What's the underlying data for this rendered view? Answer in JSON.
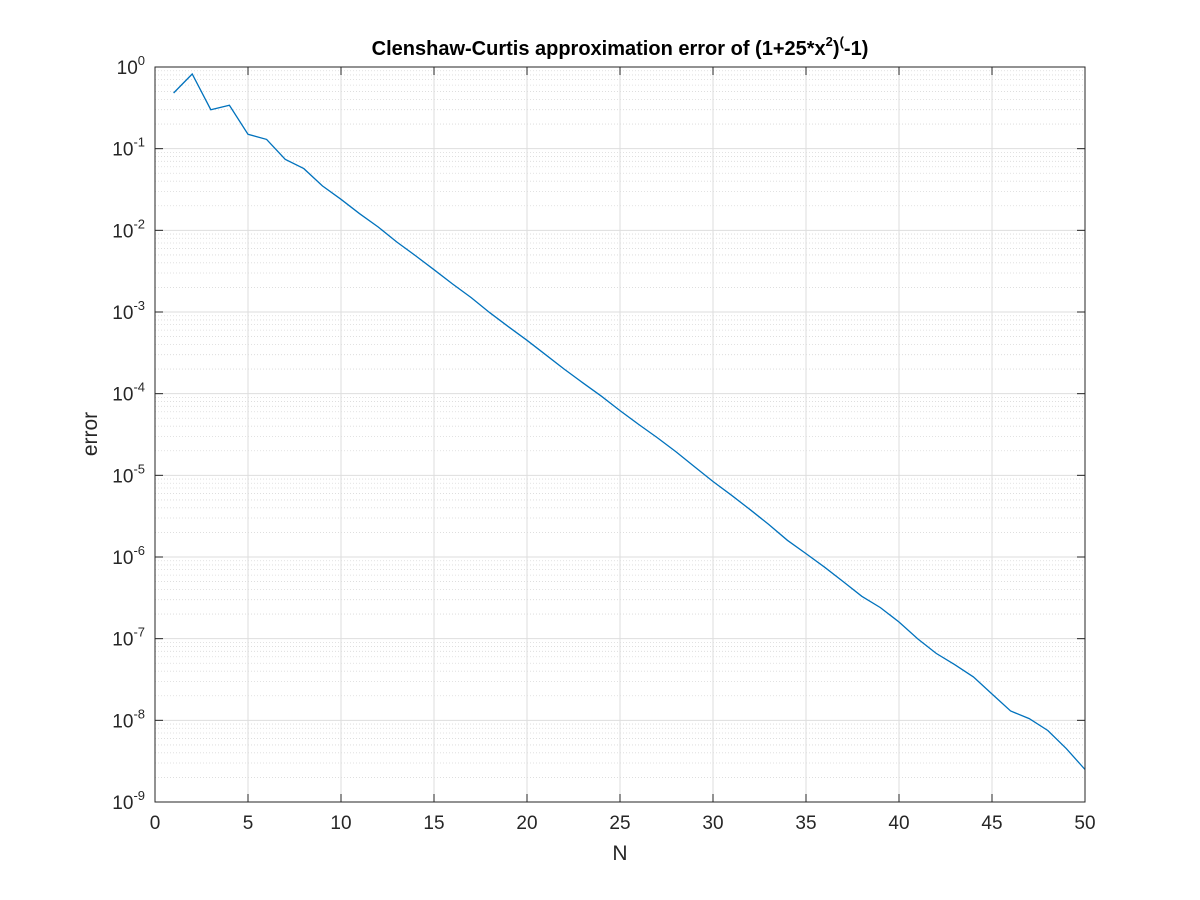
{
  "chart_data": {
    "type": "line",
    "title": {
      "main": "Clenshaw-Curtis approximation error of (1+25*x",
      "sup1": "2",
      "close": ")",
      "sup2": "(",
      "tail": "-1)"
    },
    "xlabel": "N",
    "ylabel": "error",
    "xlim": [
      0,
      50
    ],
    "ylim": [
      1e-09,
      1
    ],
    "yscale": "log",
    "grid": true,
    "minor_grid": true,
    "line_color": "#0072bd",
    "x_ticks": [
      {
        "value": 0,
        "label": "0"
      },
      {
        "value": 5,
        "label": "5"
      },
      {
        "value": 10,
        "label": "10"
      },
      {
        "value": 15,
        "label": "15"
      },
      {
        "value": 20,
        "label": "20"
      },
      {
        "value": 25,
        "label": "25"
      },
      {
        "value": 30,
        "label": "30"
      },
      {
        "value": 35,
        "label": "35"
      },
      {
        "value": 40,
        "label": "40"
      },
      {
        "value": 45,
        "label": "45"
      },
      {
        "value": 50,
        "label": "50"
      }
    ],
    "y_ticks": [
      {
        "value": 1,
        "base": "10",
        "exp": "0"
      },
      {
        "value": 0.1,
        "base": "10",
        "exp": "-1"
      },
      {
        "value": 0.01,
        "base": "10",
        "exp": "-2"
      },
      {
        "value": 0.001,
        "base": "10",
        "exp": "-3"
      },
      {
        "value": 0.0001,
        "base": "10",
        "exp": "-4"
      },
      {
        "value": 1e-05,
        "base": "10",
        "exp": "-5"
      },
      {
        "value": 1e-06,
        "base": "10",
        "exp": "-6"
      },
      {
        "value": 1e-07,
        "base": "10",
        "exp": "-7"
      },
      {
        "value": 1e-08,
        "base": "10",
        "exp": "-8"
      },
      {
        "value": 1e-09,
        "base": "10",
        "exp": "-9"
      }
    ],
    "series": [
      {
        "x": [
          1,
          2,
          3,
          4,
          5,
          6,
          7,
          8,
          9,
          10,
          11,
          12,
          13,
          14,
          15,
          16,
          17,
          18,
          19,
          20,
          21,
          22,
          23,
          24,
          25,
          26,
          27,
          28,
          29,
          30,
          31,
          32,
          33,
          34,
          35,
          36,
          37,
          38,
          39,
          40,
          41,
          42,
          43,
          44,
          45,
          46,
          47,
          48,
          49,
          50
        ],
        "y": [
          0.48,
          0.82,
          0.3,
          0.34,
          0.15,
          0.13,
          0.074,
          0.057,
          0.035,
          0.024,
          0.016,
          0.011,
          0.0072,
          0.0049,
          0.0033,
          0.0022,
          0.0015,
          0.00098,
          0.00066,
          0.00045,
          0.0003,
          0.0002,
          0.000136,
          9.3e-05,
          6.2e-05,
          4.2e-05,
          2.9e-05,
          1.95e-05,
          1.28e-05,
          8.4e-06,
          5.7e-06,
          3.8e-06,
          2.5e-06,
          1.6e-06,
          1.1e-06,
          7.5e-07,
          5e-07,
          3.3e-07,
          2.4e-07,
          1.6e-07,
          1e-07,
          6.6e-08,
          4.8e-08,
          3.4e-08,
          2.1e-08,
          1.3e-08,
          1.05e-08,
          7.5e-09,
          4.5e-09,
          2.5e-09
        ]
      }
    ]
  }
}
